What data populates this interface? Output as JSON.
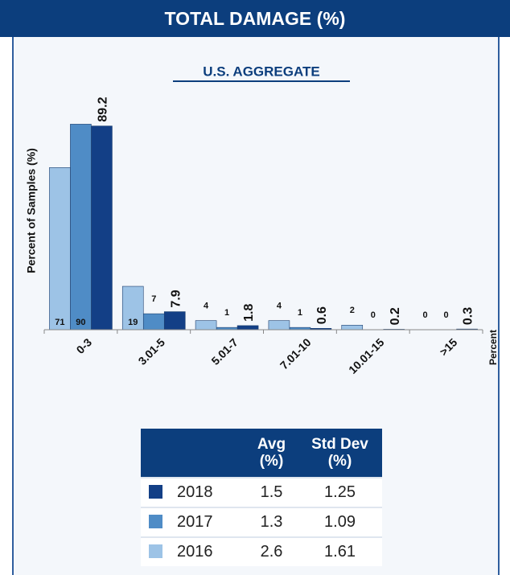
{
  "chart_data": {
    "type": "bar",
    "title": "TOTAL DAMAGE (%)",
    "subtitle": "U.S. AGGREGATE",
    "y_label": "Percent of Samples (%)",
    "x_label": "Percent",
    "categories": [
      "0-3",
      "3.01-5",
      "5.01-7",
      "7.01-10",
      "10.01-15",
      ">15"
    ],
    "ylim": [
      0,
      100
    ],
    "series": [
      {
        "name": "2018",
        "color": "#133f86",
        "values": [
          89.2,
          7.9,
          1.8,
          0.6,
          0.2,
          0.3
        ],
        "avg": 1.5,
        "std_dev": 1.25
      },
      {
        "name": "2017",
        "color": "#4f8cc6",
        "values": [
          90,
          7,
          1,
          1,
          0,
          0
        ],
        "avg": 1.3,
        "std_dev": 1.09
      },
      {
        "name": "2016",
        "color": "#9dc3e6",
        "values": [
          71,
          19,
          4,
          4,
          2,
          0
        ],
        "avg": 2.6,
        "std_dev": 1.61
      }
    ],
    "table_headers": [
      [
        "Avg",
        "(%)"
      ],
      [
        "Std Dev",
        "(%)"
      ]
    ]
  }
}
